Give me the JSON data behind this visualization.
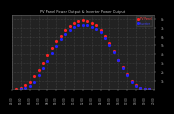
{
  "title": "PV Panel Power Output & Inverter Power Output",
  "legend_labels": [
    "PV Panel",
    "Inverter"
  ],
  "bg_color": "#000000",
  "plot_bg": "#222222",
  "grid_color": "#555555",
  "time_start": 4,
  "time_end": 20,
  "y_min": 0,
  "y_max": 8500,
  "y_ticks": [
    1000,
    2000,
    3000,
    4000,
    5000,
    6000,
    7000,
    8000
  ],
  "y_tick_labels": [
    "1k",
    "2k",
    "3k",
    "4k",
    "5k",
    "6k",
    "7k",
    "8k"
  ],
  "x_ticks": [
    4,
    5,
    6,
    7,
    8,
    9,
    10,
    11,
    12,
    13,
    14,
    15,
    16,
    17,
    18,
    19,
    20
  ],
  "pv_times": [
    4.5,
    5.0,
    5.5,
    6.0,
    6.5,
    7.0,
    7.5,
    8.0,
    8.5,
    9.0,
    9.5,
    10.0,
    10.5,
    11.0,
    11.5,
    12.0,
    12.5,
    13.0,
    13.5,
    14.0,
    14.5,
    15.0,
    15.5,
    16.0,
    16.5,
    17.0,
    17.5,
    18.0,
    18.5,
    19.0,
    19.5
  ],
  "pv_values": [
    50,
    200,
    500,
    900,
    1500,
    2200,
    3000,
    3900,
    4700,
    5500,
    6100,
    6700,
    7200,
    7600,
    7800,
    7900,
    7800,
    7600,
    7300,
    6800,
    6100,
    5300,
    4400,
    3400,
    2500,
    1700,
    1000,
    500,
    200,
    60,
    10
  ],
  "inv_times": [
    5.0,
    5.5,
    6.0,
    6.5,
    7.0,
    7.5,
    8.0,
    8.5,
    9.0,
    9.5,
    10.0,
    10.5,
    11.0,
    11.5,
    12.0,
    12.5,
    13.0,
    13.5,
    14.0,
    14.5,
    15.0,
    15.5,
    16.0,
    16.5,
    17.0,
    17.5,
    18.0,
    18.5,
    19.0,
    19.5
  ],
  "inv_values": [
    30,
    150,
    400,
    900,
    1600,
    2400,
    3200,
    4100,
    4900,
    5700,
    6300,
    6800,
    7100,
    7300,
    7350,
    7300,
    7100,
    6900,
    6500,
    5900,
    5100,
    4200,
    3300,
    2400,
    1600,
    900,
    400,
    130,
    40,
    5
  ],
  "pv_color": "#ff2222",
  "inv_color": "#2222ff",
  "markersize": 2.5,
  "title_color": "#cccccc",
  "tick_color": "#aaaaaa",
  "legend_pv_color": "#ff4444",
  "legend_inv_color": "#4444ff"
}
